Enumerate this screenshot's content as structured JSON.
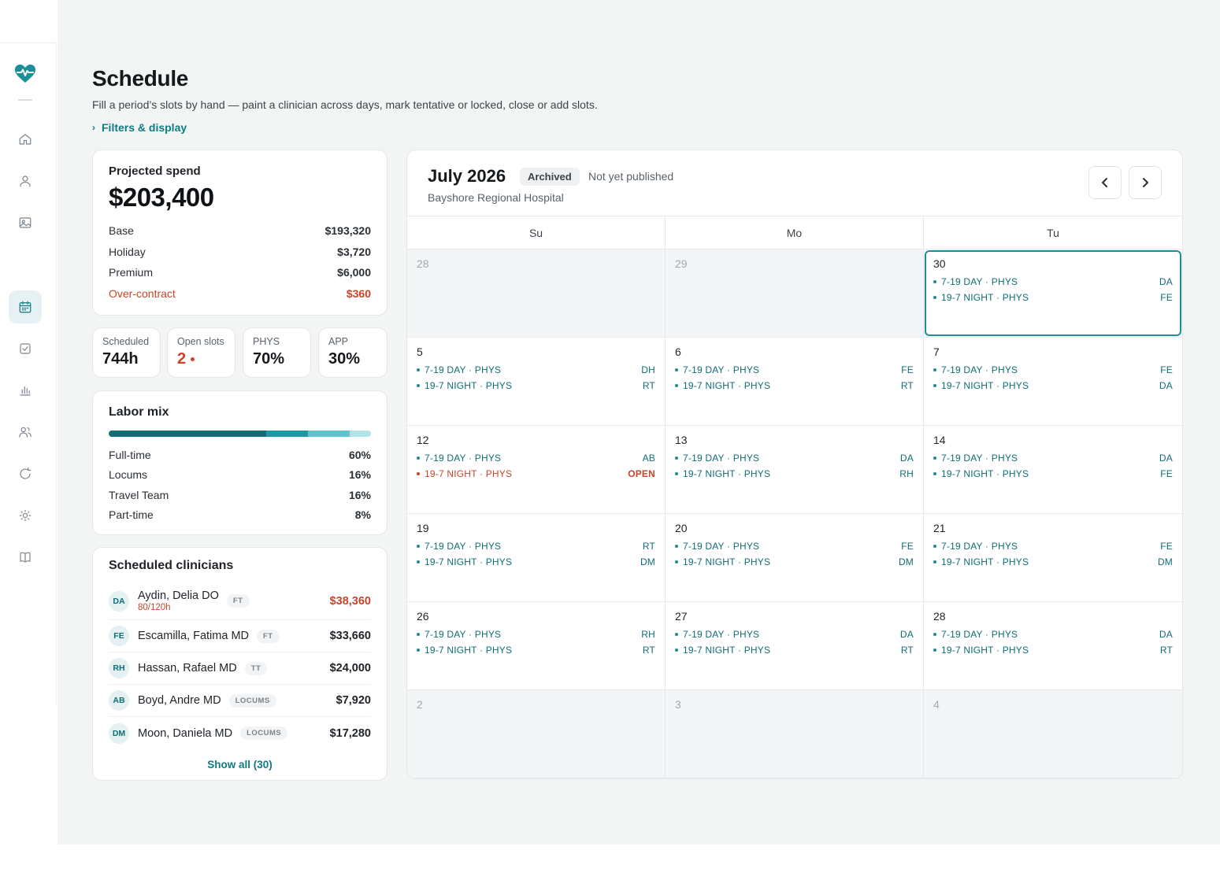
{
  "sidebar": {
    "logo": "heart-pulse-icon",
    "items": [
      {
        "icon": "home-icon",
        "name": "home"
      },
      {
        "icon": "user-icon",
        "name": "profile"
      },
      {
        "icon": "image-icon",
        "name": "media"
      },
      {
        "icon": "calendar-icon",
        "name": "schedule",
        "active": true
      },
      {
        "icon": "checkbox-icon",
        "name": "tasks"
      },
      {
        "icon": "bar-chart-icon",
        "name": "reports"
      },
      {
        "icon": "users-icon",
        "name": "team"
      },
      {
        "icon": "refresh-icon",
        "name": "sync"
      },
      {
        "icon": "sun-icon",
        "name": "settings"
      },
      {
        "icon": "book-icon",
        "name": "docs"
      }
    ]
  },
  "page": {
    "title": "Schedule",
    "subtitle": "Fill a period’s slots by hand — paint a clinician across days, mark tentative or locked, close or add slots.",
    "filters_label": "Filters & display"
  },
  "spend": {
    "label": "Projected spend",
    "total": "$203,400",
    "rows": [
      {
        "label": "Base",
        "value": "$193,320"
      },
      {
        "label": "Holiday",
        "value": "$3,720"
      },
      {
        "label": "Premium",
        "value": "$6,000"
      },
      {
        "label": "Over-contract",
        "value": "$360",
        "warn": true
      }
    ]
  },
  "stats": [
    {
      "label": "Scheduled",
      "value": "744h"
    },
    {
      "label": "Open slots",
      "value": "2",
      "warn": true
    },
    {
      "label": "PHYS",
      "value": "70%"
    },
    {
      "label": "APP",
      "value": "30%"
    }
  ],
  "labor": {
    "title": "Labor mix",
    "rows": [
      {
        "label": "Full-time",
        "value": "60%",
        "fraction": 0.6,
        "color": "#0f6d75"
      },
      {
        "label": "Locums",
        "value": "16%",
        "fraction": 0.16,
        "color": "#1a9aa3"
      },
      {
        "label": "Travel Team",
        "value": "16%",
        "fraction": 0.16,
        "color": "#5cc6cc"
      },
      {
        "label": "Part-time",
        "value": "8%",
        "fraction": 0.08,
        "color": "#b3e3e6"
      }
    ]
  },
  "clinicians": {
    "title": "Scheduled clinicians",
    "items": [
      {
        "initials": "DA",
        "name": "Aydin, Delia DO",
        "tag": "FT",
        "sub": "80/120h",
        "amount": "$38,360",
        "warn": true
      },
      {
        "initials": "FE",
        "name": "Escamilla, Fatima MD",
        "tag": "FT",
        "sub": "",
        "amount": "$33,660"
      },
      {
        "initials": "RH",
        "name": "Hassan, Rafael MD",
        "tag": "TT",
        "sub": "",
        "amount": "$24,000"
      },
      {
        "initials": "AB",
        "name": "Boyd, Andre MD",
        "tag": "LOCUMS",
        "sub": "",
        "amount": "$7,920"
      },
      {
        "initials": "DM",
        "name": "Moon, Daniela MD",
        "tag": "LOCUMS",
        "sub": "",
        "amount": "$17,280"
      }
    ],
    "show_all": "Show all (30)"
  },
  "calendar": {
    "title": "July 2026",
    "status_badge": "Archived",
    "publish_status": "Not yet published",
    "facility": "Bayshore Regional Hospital",
    "days_of_week": [
      "Su",
      "Mo",
      "Tu"
    ],
    "weeks": [
      [
        {
          "num": "28",
          "muted": true,
          "slots": []
        },
        {
          "num": "29",
          "muted": true,
          "slots": []
        },
        {
          "num": "30",
          "selected": true,
          "slots": [
            {
              "label": "7-19 DAY · PHYS",
              "who": "DA"
            },
            {
              "label": "19-7 NIGHT · PHYS",
              "who": "FE"
            }
          ]
        }
      ],
      [
        {
          "num": "5",
          "slots": [
            {
              "label": "7-19 DAY · PHYS",
              "who": "DH"
            },
            {
              "label": "19-7 NIGHT · PHYS",
              "who": "RT"
            }
          ]
        },
        {
          "num": "6",
          "slots": [
            {
              "label": "7-19 DAY · PHYS",
              "who": "FE"
            },
            {
              "label": "19-7 NIGHT · PHYS",
              "who": "RT"
            }
          ]
        },
        {
          "num": "7",
          "slots": [
            {
              "label": "7-19 DAY · PHYS",
              "who": "FE"
            },
            {
              "label": "19-7 NIGHT · PHYS",
              "who": "DA"
            }
          ]
        }
      ],
      [
        {
          "num": "12",
          "slots": [
            {
              "label": "7-19 DAY · PHYS",
              "who": "AB"
            },
            {
              "label": "19-7 NIGHT · PHYS",
              "who": "OPEN",
              "open": true
            }
          ]
        },
        {
          "num": "13",
          "slots": [
            {
              "label": "7-19 DAY · PHYS",
              "who": "DA"
            },
            {
              "label": "19-7 NIGHT · PHYS",
              "who": "RH"
            }
          ]
        },
        {
          "num": "14",
          "slots": [
            {
              "label": "7-19 DAY · PHYS",
              "who": "DA"
            },
            {
              "label": "19-7 NIGHT · PHYS",
              "who": "FE"
            }
          ]
        }
      ],
      [
        {
          "num": "19",
          "slots": [
            {
              "label": "7-19 DAY · PHYS",
              "who": "RT"
            },
            {
              "label": "19-7 NIGHT · PHYS",
              "who": "DM"
            }
          ]
        },
        {
          "num": "20",
          "slots": [
            {
              "label": "7-19 DAY · PHYS",
              "who": "FE"
            },
            {
              "label": "19-7 NIGHT · PHYS",
              "who": "DM"
            }
          ]
        },
        {
          "num": "21",
          "slots": [
            {
              "label": "7-19 DAY · PHYS",
              "who": "FE"
            },
            {
              "label": "19-7 NIGHT · PHYS",
              "who": "DM"
            }
          ]
        }
      ],
      [
        {
          "num": "26",
          "slots": [
            {
              "label": "7-19 DAY · PHYS",
              "who": "RH"
            },
            {
              "label": "19-7 NIGHT · PHYS",
              "who": "RT"
            }
          ]
        },
        {
          "num": "27",
          "slots": [
            {
              "label": "7-19 DAY · PHYS",
              "who": "DA"
            },
            {
              "label": "19-7 NIGHT · PHYS",
              "who": "RT"
            }
          ]
        },
        {
          "num": "28",
          "slots": [
            {
              "label": "7-19 DAY · PHYS",
              "who": "DA"
            },
            {
              "label": "19-7 NIGHT · PHYS",
              "who": "RT"
            }
          ]
        }
      ],
      [
        {
          "num": "2",
          "muted": true,
          "slots": []
        },
        {
          "num": "3",
          "muted": true,
          "slots": []
        },
        {
          "num": "4",
          "muted": true,
          "slots": []
        }
      ]
    ]
  }
}
